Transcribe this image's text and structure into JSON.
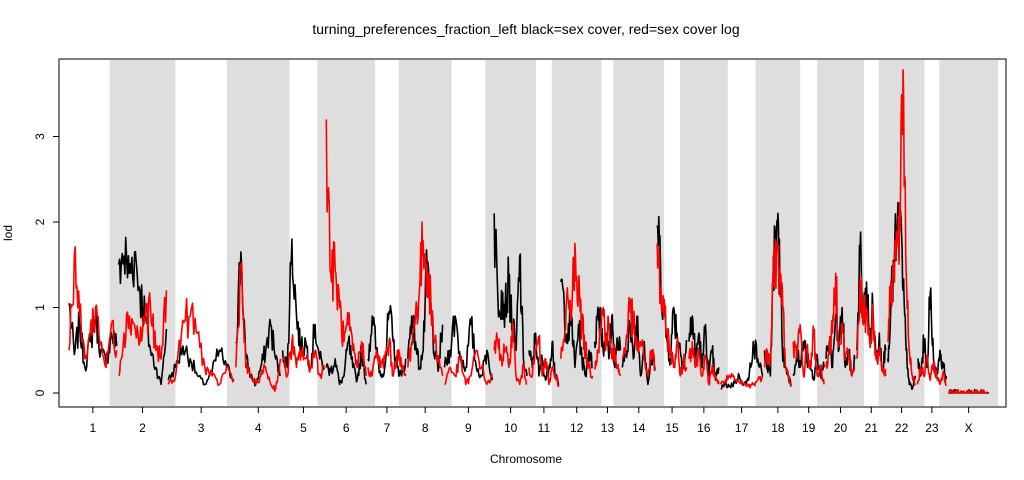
{
  "chart_data": {
    "type": "line",
    "title": "turning_preferences_fraction_left black=sex cover, red=sex cover log",
    "xlabel": "Chromosome",
    "ylabel": "lod",
    "ylim": [
      0,
      4
    ],
    "yticks": [
      "0",
      "1",
      "2",
      "3"
    ],
    "grid": false,
    "colors": {
      "black_series": "#000000",
      "red_series": "#ff0000",
      "shade": "#dedede"
    },
    "chromosomes": [
      {
        "label": "1",
        "start": 0,
        "end": 50
      },
      {
        "label": "2",
        "start": 50,
        "end": 100
      },
      {
        "label": "3",
        "start": 100,
        "end": 168
      },
      {
        "label": "4",
        "start": 168,
        "end": 215
      },
      {
        "label": "5",
        "start": 215,
        "end": 259
      },
      {
        "label": "6",
        "start": 259,
        "end": 301
      },
      {
        "label": "7",
        "start": 301,
        "end": 341
      },
      {
        "label": "8",
        "start": 341,
        "end": 378
      },
      {
        "label": "9",
        "start": 378,
        "end": 428
      },
      {
        "label": "10",
        "start": 428,
        "end": 463
      },
      {
        "label": "11",
        "start": 463,
        "end": 495
      },
      {
        "label": "12",
        "start": 495,
        "end": 529
      },
      {
        "label": "13",
        "start": 529,
        "end": 557
      },
      {
        "label": "14",
        "start": 557,
        "end": 592
      },
      {
        "label": "15",
        "start": 592,
        "end": 624
      },
      {
        "label": "16",
        "start": 624,
        "end": 656
      },
      {
        "label": "17",
        "start": 656,
        "end": 700
      },
      {
        "label": "18",
        "start": 700,
        "end": 729
      },
      {
        "label": "19",
        "start": 729,
        "end": 762
      },
      {
        "label": "20",
        "start": 762,
        "end": 793
      },
      {
        "label": "21",
        "start": 793,
        "end": 824
      },
      {
        "label": "22",
        "start": 824,
        "end": 854
      },
      {
        "label": "23",
        "start": 854,
        "end": 885
      },
      {
        "label": "X",
        "start": 885,
        "end": 928
      }
    ],
    "series": [
      {
        "name": "sex cover",
        "color": "#000000",
        "peaks": [
          [
            1.05,
            0.45,
            0.8,
            0.3,
            0.6,
            0.9,
            0.5,
            0.35,
            0.7,
            0.55
          ],
          [
            1.5,
            1.6,
            1.4,
            1.65,
            1.2,
            0.9,
            0.5,
            0.3,
            0.1,
            0.75
          ],
          [
            0.15,
            0.3,
            0.55,
            0.4,
            0.2,
            0.1,
            0.25,
            0.5,
            0.3,
            0.15
          ],
          [
            0.6,
            1.65,
            0.4,
            0.2,
            0.1,
            0.3,
            0.5,
            0.8,
            0.4,
            0.2
          ],
          [
            0.5,
            0.3,
            1.8,
            0.9,
            0.5,
            0.6,
            0.3,
            0.8,
            0.4,
            0.3
          ],
          [
            0.3,
            0.25,
            0.4,
            0.1,
            0.2,
            0.6,
            0.3,
            0.15,
            0.5,
            0.1
          ],
          [
            0.4,
            0.9,
            0.5,
            0.2,
            0.3,
            0.95,
            0.6,
            0.3,
            0.2,
            0.4
          ],
          [
            0.4,
            0.9,
            0.6,
            0.3,
            0.5,
            1.5,
            1.0,
            0.4,
            0.3,
            0.8
          ],
          [
            0.3,
            0.5,
            0.9,
            0.4,
            0.3,
            0.8,
            0.3,
            0.2,
            0.5,
            0.15
          ],
          [
            2.1,
            1.1,
            1.2,
            1.0,
            1.3,
            0.8,
            0.5,
            1.6,
            0.4,
            0.2
          ],
          [
            0.5,
            0.3,
            0.7,
            0.2,
            0.4,
            0.15,
            0.3,
            0.6,
            0.2,
            0.1
          ],
          [
            1.3,
            1.0,
            0.6,
            0.9,
            0.3,
            0.8,
            0.4,
            0.2,
            0.5,
            0.3
          ],
          [
            0.6,
            0.9,
            1.0,
            0.5,
            0.7,
            0.4,
            0.9,
            0.3,
            0.6,
            0.5
          ],
          [
            0.3,
            0.5,
            0.8,
            0.4,
            0.9,
            0.2,
            0.6,
            0.1,
            0.4,
            0.3
          ],
          [
            1.96,
            1.5,
            0.9,
            0.6,
            0.4,
            1.0,
            0.7,
            0.5,
            0.3,
            0.6
          ],
          [
            0.6,
            0.9,
            0.4,
            0.7,
            0.3,
            0.8,
            0.2,
            0.5,
            0.15,
            0.3
          ],
          [
            0.05,
            0.1,
            0.08,
            0.12,
            0.2,
            0.1,
            0.15,
            0.6,
            0.4,
            0.2
          ],
          [
            0.5,
            0.3,
            0.2,
            1.6,
            1.75,
            1.8,
            0.5,
            0.3,
            0.2,
            0.1
          ],
          [
            0.2,
            0.5,
            0.3,
            0.6,
            0.4,
            0.3,
            0.15,
            0.45,
            0.2,
            0.3
          ],
          [
            0.4,
            0.6,
            0.3,
            0.9,
            0.5,
            1.0,
            0.3,
            0.5,
            0.2,
            0.4
          ],
          [
            0.5,
            1.7,
            0.8,
            1.3,
            0.6,
            1.0,
            0.4,
            0.7,
            0.3,
            0.5
          ],
          [
            0.4,
            1.0,
            1.5,
            1.8,
            2.0,
            1.2,
            0.5,
            0.1,
            0.05,
            0.2
          ],
          [
            0.4,
            0.2,
            0.6,
            0.3,
            1.18,
            0.4,
            0.2,
            0.5,
            0.3,
            0.2
          ],
          [
            0,
            0,
            0,
            0,
            0,
            0,
            0,
            0,
            0,
            0
          ]
        ]
      },
      {
        "name": "sex cover log",
        "color": "#ff0000",
        "peaks": [
          [
            0.5,
            1.6,
            0.9,
            0.4,
            0.7,
            1.0,
            0.6,
            0.3,
            0.8,
            0.5
          ],
          [
            0.2,
            0.7,
            0.9,
            0.8,
            0.6,
            0.9,
            1.0,
            0.5,
            0.4,
            1.2
          ],
          [
            0.1,
            0.2,
            0.85,
            0.9,
            0.7,
            0.3,
            0.2,
            0.1,
            0.3,
            0.15
          ],
          [
            0.3,
            1.5,
            0.3,
            0.2,
            0.1,
            0.2,
            0.3,
            0.1,
            0.05,
            0.4
          ],
          [
            0.4,
            0.2,
            0.6,
            0.3,
            0.5,
            0.4,
            0.3,
            0.5,
            0.2,
            0.3
          ],
          [
            3.2,
            1.4,
            1.43,
            1.0,
            0.6,
            0.8,
            0.5,
            0.3,
            0.6,
            0.2
          ],
          [
            0.3,
            0.2,
            0.5,
            0.3,
            0.4,
            0.6,
            0.2,
            0.5,
            0.3,
            0.2
          ],
          [
            0.3,
            0.6,
            0.9,
            1.2,
            1.78,
            1.5,
            1.0,
            0.6,
            0.4,
            0.2
          ],
          [
            0.1,
            0.3,
            0.2,
            0.4,
            0.1,
            0.2,
            0.5,
            0.3,
            0.1,
            0.2
          ],
          [
            0.5,
            0.6,
            0.4,
            0.5,
            0.3,
            0.8,
            0.2,
            0.1,
            0.3,
            0.1
          ],
          [
            0.3,
            0.2,
            0.5,
            0.6,
            0.2,
            0.4,
            0.1,
            0.3,
            0.2,
            0.1
          ],
          [
            0.4,
            0.6,
            1.1,
            0.9,
            1.75,
            1.2,
            0.8,
            0.5,
            0.3,
            0.2
          ],
          [
            0.3,
            0.5,
            0.7,
            1.0,
            0.6,
            0.8,
            0.4,
            0.5,
            0.3,
            0.2
          ],
          [
            0.4,
            0.6,
            1.0,
            0.8,
            0.5,
            0.6,
            0.4,
            0.2,
            0.5,
            0.3
          ],
          [
            1.75,
            1.2,
            0.9,
            0.7,
            0.5,
            0.3,
            0.6,
            0.2,
            0.4,
            0.3
          ],
          [
            0.4,
            0.6,
            0.3,
            0.5,
            0.2,
            0.4,
            0.1,
            0.3,
            0.2,
            0.1
          ],
          [
            0.1,
            0.15,
            0.2,
            0.15,
            0.12,
            0.1,
            0.08,
            0.1,
            0.15,
            0.2
          ],
          [
            0.3,
            0.5,
            0.4,
            1.5,
            1.6,
            1.4,
            1.2,
            0.3,
            0.2,
            0.1
          ],
          [
            0.6,
            0.4,
            0.8,
            0.2,
            0.5,
            0.3,
            0.7,
            0.2,
            0.3,
            0.1
          ],
          [
            0.3,
            0.5,
            0.7,
            1.4,
            0.6,
            0.8,
            0.4,
            0.5,
            0.2,
            0.3
          ],
          [
            0.4,
            1.3,
            0.8,
            1.0,
            0.6,
            0.9,
            0.4,
            0.5,
            0.3,
            0.2
          ],
          [
            0.6,
            1.3,
            1.5,
            1.7,
            1.9,
            3.78,
            1.4,
            0.5,
            0.2,
            0.1
          ],
          [
            0.1,
            0.3,
            0.2,
            0.4,
            0.15,
            0.35,
            0.2,
            0.1,
            0.25,
            0.1
          ],
          [
            0,
            0,
            0,
            0,
            0,
            0,
            0,
            0,
            0,
            0
          ]
        ]
      }
    ]
  }
}
